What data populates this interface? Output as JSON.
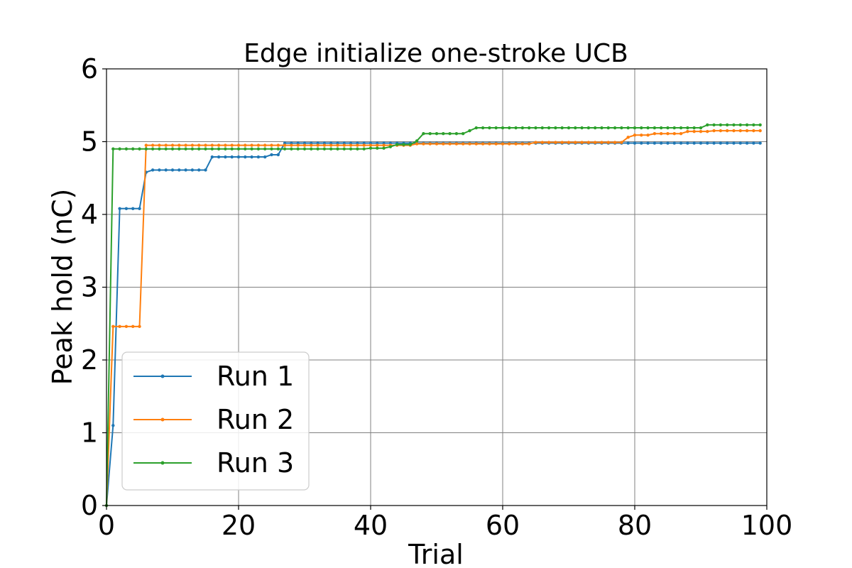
{
  "chart_data": {
    "type": "line",
    "title": "Edge initialize one-stroke UCB",
    "xlabel": "Trial",
    "ylabel": "Peak hold (nC)",
    "xlim": [
      0,
      100
    ],
    "ylim": [
      0,
      6
    ],
    "xticks": [
      0,
      20,
      40,
      60,
      80,
      100
    ],
    "yticks": [
      0,
      1,
      2,
      3,
      4,
      5,
      6
    ],
    "grid": true,
    "legend_position": "lower-left",
    "series": [
      {
        "name": "Run 1",
        "color": "#1f77b4",
        "steps": [
          [
            0,
            0.0
          ],
          [
            1,
            1.1
          ],
          [
            2,
            4.08
          ],
          [
            6,
            4.58
          ],
          [
            7,
            4.61
          ],
          [
            16,
            4.79
          ],
          [
            25,
            4.82
          ],
          [
            27,
            4.98
          ],
          [
            100,
            4.98
          ]
        ]
      },
      {
        "name": "Run 2",
        "color": "#ff7f0e",
        "steps": [
          [
            0,
            0.0
          ],
          [
            1,
            2.46
          ],
          [
            6,
            4.95
          ],
          [
            47,
            4.97
          ],
          [
            65,
            4.99
          ],
          [
            79,
            5.06
          ],
          [
            80,
            5.09
          ],
          [
            83,
            5.11
          ],
          [
            88,
            5.14
          ],
          [
            92,
            5.15
          ],
          [
            100,
            5.15
          ]
        ]
      },
      {
        "name": "Run 3",
        "color": "#2ca02c",
        "steps": [
          [
            0,
            0.0
          ],
          [
            1,
            4.9
          ],
          [
            40,
            4.91
          ],
          [
            43,
            4.93
          ],
          [
            44,
            4.96
          ],
          [
            47,
            5.01
          ],
          [
            48,
            5.11
          ],
          [
            55,
            5.15
          ],
          [
            56,
            5.19
          ],
          [
            91,
            5.23
          ],
          [
            100,
            5.23
          ]
        ]
      }
    ]
  }
}
